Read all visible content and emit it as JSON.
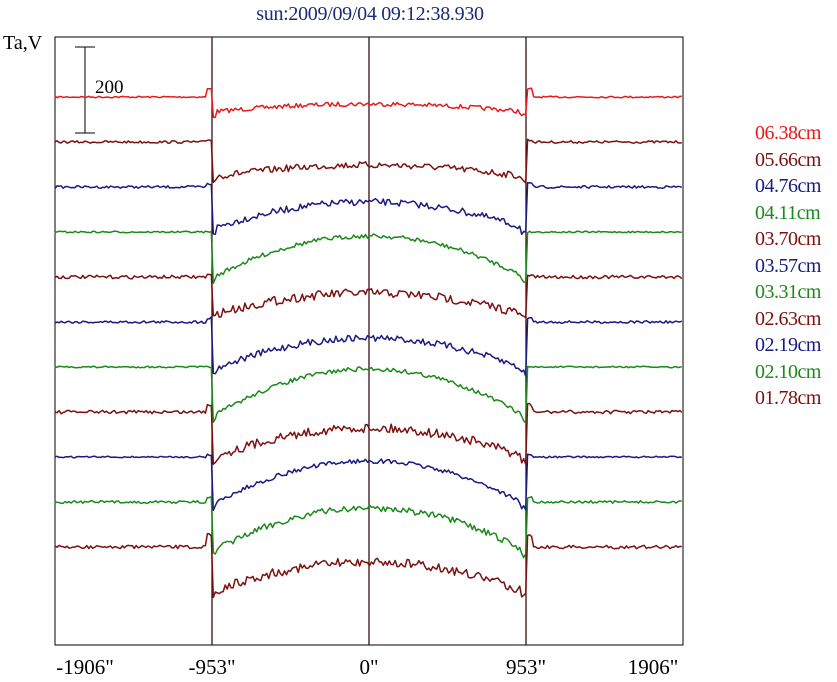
{
  "title": "sun:2009/09/04 09:12:38.930",
  "ylabel": "Ta,V",
  "scale_bar_label": "200",
  "colors": {
    "red": "#e8191b",
    "maroon": "#7d1010",
    "navy": "#1a1a82",
    "green": "#1a8a1a",
    "axis": "#000000",
    "limb": "#3a1010"
  },
  "chart_data": {
    "type": "line",
    "title": "sun:2009/09/04 09:12:38.930",
    "xlabel": "",
    "ylabel": "Ta,V",
    "xlim": [
      -1906,
      1906
    ],
    "x_ticks": [
      -1906,
      -953,
      0,
      953,
      1906
    ],
    "x_tick_labels": [
      "-1906\"",
      "-953\"",
      "0\"",
      "953\"",
      "1906\""
    ],
    "vertical_lines": [
      -953,
      0,
      953
    ],
    "scale_bar": 200,
    "grid": false,
    "legend_position": "right",
    "series": [
      {
        "name": "06.38cm",
        "color": "red",
        "baseline": 0,
        "dip": 15,
        "dome": 8,
        "limb_peak": 8,
        "noise": 2
      },
      {
        "name": "05.66cm",
        "color": "maroon",
        "baseline": 45,
        "dip": 35,
        "dome": 12,
        "limb_peak": 2,
        "noise": 3
      },
      {
        "name": "04.76cm",
        "color": "navy",
        "baseline": 90,
        "dip": 42,
        "dome": 27,
        "limb_peak": 3,
        "noise": 3
      },
      {
        "name": "04.11cm",
        "color": "green",
        "baseline": 135,
        "dip": 46,
        "dome": 42,
        "limb_peak": 0,
        "noise": 2
      },
      {
        "name": "03.70cm",
        "color": "maroon",
        "baseline": 180,
        "dip": 38,
        "dome": 22,
        "limb_peak": 2,
        "noise": 4
      },
      {
        "name": "03.57cm",
        "color": "navy",
        "baseline": 225,
        "dip": 48,
        "dome": 32,
        "limb_peak": 4,
        "noise": 3
      },
      {
        "name": "03.31cm",
        "color": "green",
        "baseline": 270,
        "dip": 50,
        "dome": 48,
        "limb_peak": 0,
        "noise": 2
      },
      {
        "name": "02.63cm",
        "color": "maroon",
        "baseline": 315,
        "dip": 46,
        "dome": 30,
        "limb_peak": 7,
        "noise": 4
      },
      {
        "name": "02.19cm",
        "color": "navy",
        "baseline": 360,
        "dip": 48,
        "dome": 44,
        "limb_peak": 2,
        "noise": 2
      },
      {
        "name": "02.10cm",
        "color": "green",
        "baseline": 405,
        "dip": 50,
        "dome": 44,
        "limb_peak": 5,
        "noise": 3
      },
      {
        "name": "01.78cm",
        "color": "maroon",
        "baseline": 450,
        "dip": 45,
        "dome": 30,
        "limb_peak": 12,
        "noise": 4
      }
    ]
  }
}
